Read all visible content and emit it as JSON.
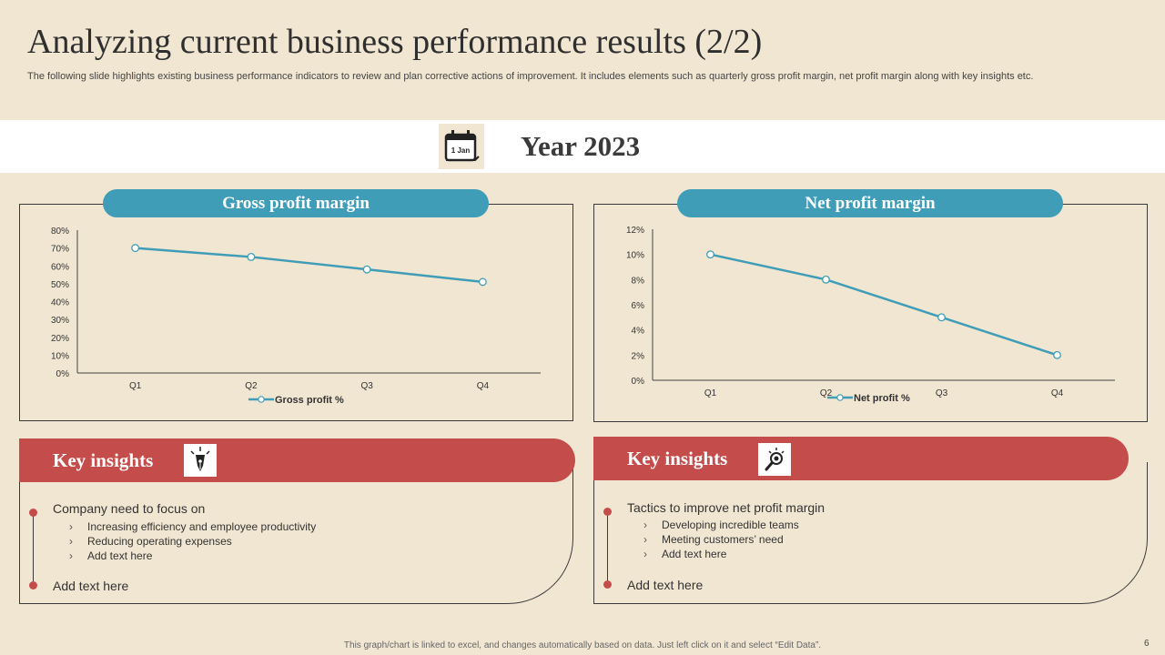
{
  "header": {
    "title": "Analyzing current business performance results (2/2)",
    "subtitle": "The following slide highlights existing business performance indicators to review and plan corrective actions of improvement. It includes elements such as quarterly gross profit margin, net profit margin along with key insights etc."
  },
  "year_band": {
    "calendar_icon_text": "1 Jan",
    "year": "Year 2023",
    "icon": "calendar-icon"
  },
  "chart_data": [
    {
      "type": "line",
      "title": "Gross profit margin",
      "categories": [
        "Q1",
        "Q2",
        "Q3",
        "Q4"
      ],
      "series": [
        {
          "name": "Gross profit %",
          "values": [
            70,
            65,
            58,
            51
          ]
        }
      ],
      "ylim": [
        0,
        80
      ],
      "yticks": [
        "0%",
        "10%",
        "20%",
        "30%",
        "40%",
        "50%",
        "60%",
        "70%",
        "80%"
      ],
      "legend": "bottom",
      "line_color": "#3f9db8"
    },
    {
      "type": "line",
      "title": "Net profit margin",
      "categories": [
        "Q1",
        "Q2",
        "Q3",
        "Q4"
      ],
      "series": [
        {
          "name": "Net profit %",
          "values": [
            10,
            8,
            5,
            2
          ]
        }
      ],
      "ylim": [
        0,
        12
      ],
      "yticks": [
        "0%",
        "2%",
        "4%",
        "6%",
        "8%",
        "10%",
        "12%"
      ],
      "legend": "bottom",
      "line_color": "#3f9db8"
    }
  ],
  "insights": [
    {
      "label": "Key insights",
      "icon": "pen-nib-icon",
      "main": "Company need to focus on",
      "subs": [
        "Increasing efficiency and employee productivity",
        "Reducing operating expenses",
        "Add text here"
      ],
      "bottom": "Add text here"
    },
    {
      "label": "Key insights",
      "icon": "lightbulb-magnifier-icon",
      "main": "Tactics to improve net profit margin",
      "subs": [
        "Developing incredible teams",
        "Meeting customers’ need",
        "Add text here"
      ],
      "bottom": "Add text here"
    }
  ],
  "footer": {
    "note": "This graph/chart is linked to excel, and changes automatically based on data. Just left click on it and select “Edit Data”.",
    "page": "6"
  },
  "colors": {
    "background": "#f1e6d2",
    "accent_teal": "#3f9db8",
    "accent_red": "#c44d4b"
  }
}
